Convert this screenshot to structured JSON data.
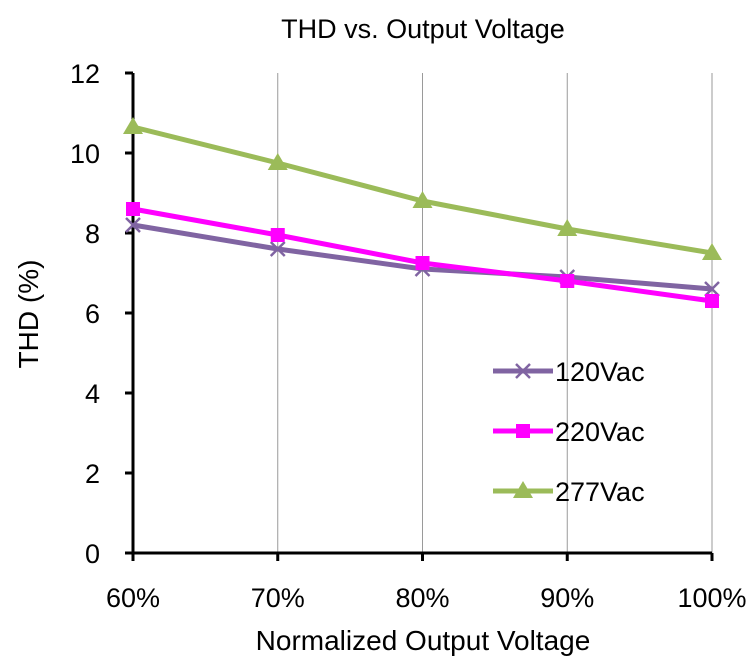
{
  "chart_data": {
    "type": "line",
    "title": "THD vs. Output Voltage",
    "xlabel": "Normalized Output Voltage",
    "ylabel": "THD (%)",
    "categories": [
      "60%",
      "70%",
      "80%",
      "90%",
      "100%"
    ],
    "ylim": [
      0,
      12
    ],
    "yticks": [
      "0",
      "2",
      "4",
      "6",
      "8",
      "10",
      "12"
    ],
    "grid": "vertical",
    "legend_position": "center-right",
    "series": [
      {
        "name": "120Vac",
        "values": [
          8.2,
          7.6,
          7.1,
          6.9,
          6.6
        ],
        "color": "#8064A2",
        "marker": "x"
      },
      {
        "name": "220Vac",
        "values": [
          8.6,
          7.95,
          7.25,
          6.8,
          6.3
        ],
        "color": "#FF00FF",
        "marker": "square"
      },
      {
        "name": "277Vac",
        "values": [
          10.65,
          9.75,
          8.8,
          8.1,
          7.5
        ],
        "color": "#9BBB59",
        "marker": "triangle"
      }
    ]
  }
}
